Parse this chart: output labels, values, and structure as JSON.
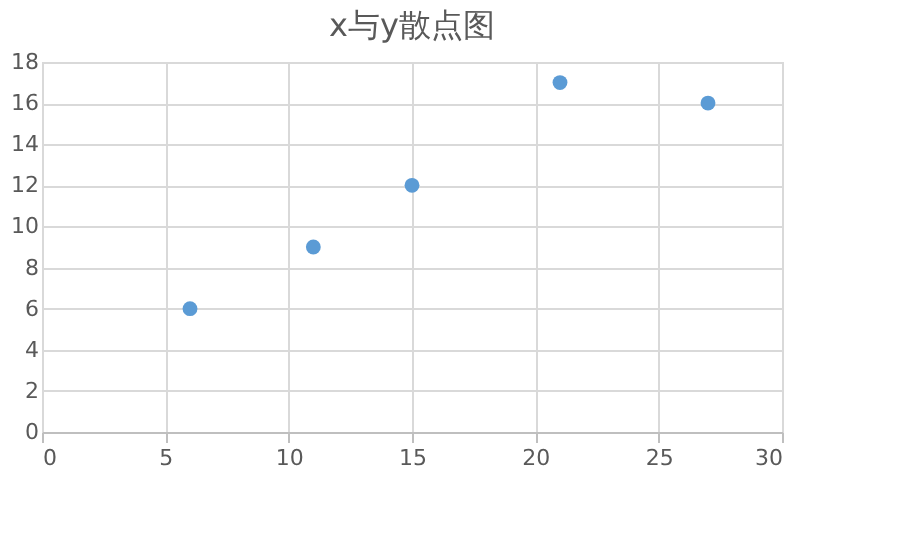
{
  "chart_data": {
    "type": "scatter",
    "title": "x与y散点图",
    "x": [
      6,
      11,
      15,
      21,
      27
    ],
    "series": [
      {
        "color": "#5b9bd5",
        "values": [
          6,
          9,
          12,
          17,
          16
        ]
      }
    ],
    "xlim": [
      0,
      30
    ],
    "xticks": [
      0,
      5,
      10,
      15,
      20,
      25,
      30
    ],
    "ylim": [
      0,
      18
    ],
    "yticks": [
      0,
      2,
      4,
      6,
      8,
      10,
      12,
      14,
      16,
      18
    ],
    "grid": true,
    "marker": "circle",
    "legend": false
  }
}
